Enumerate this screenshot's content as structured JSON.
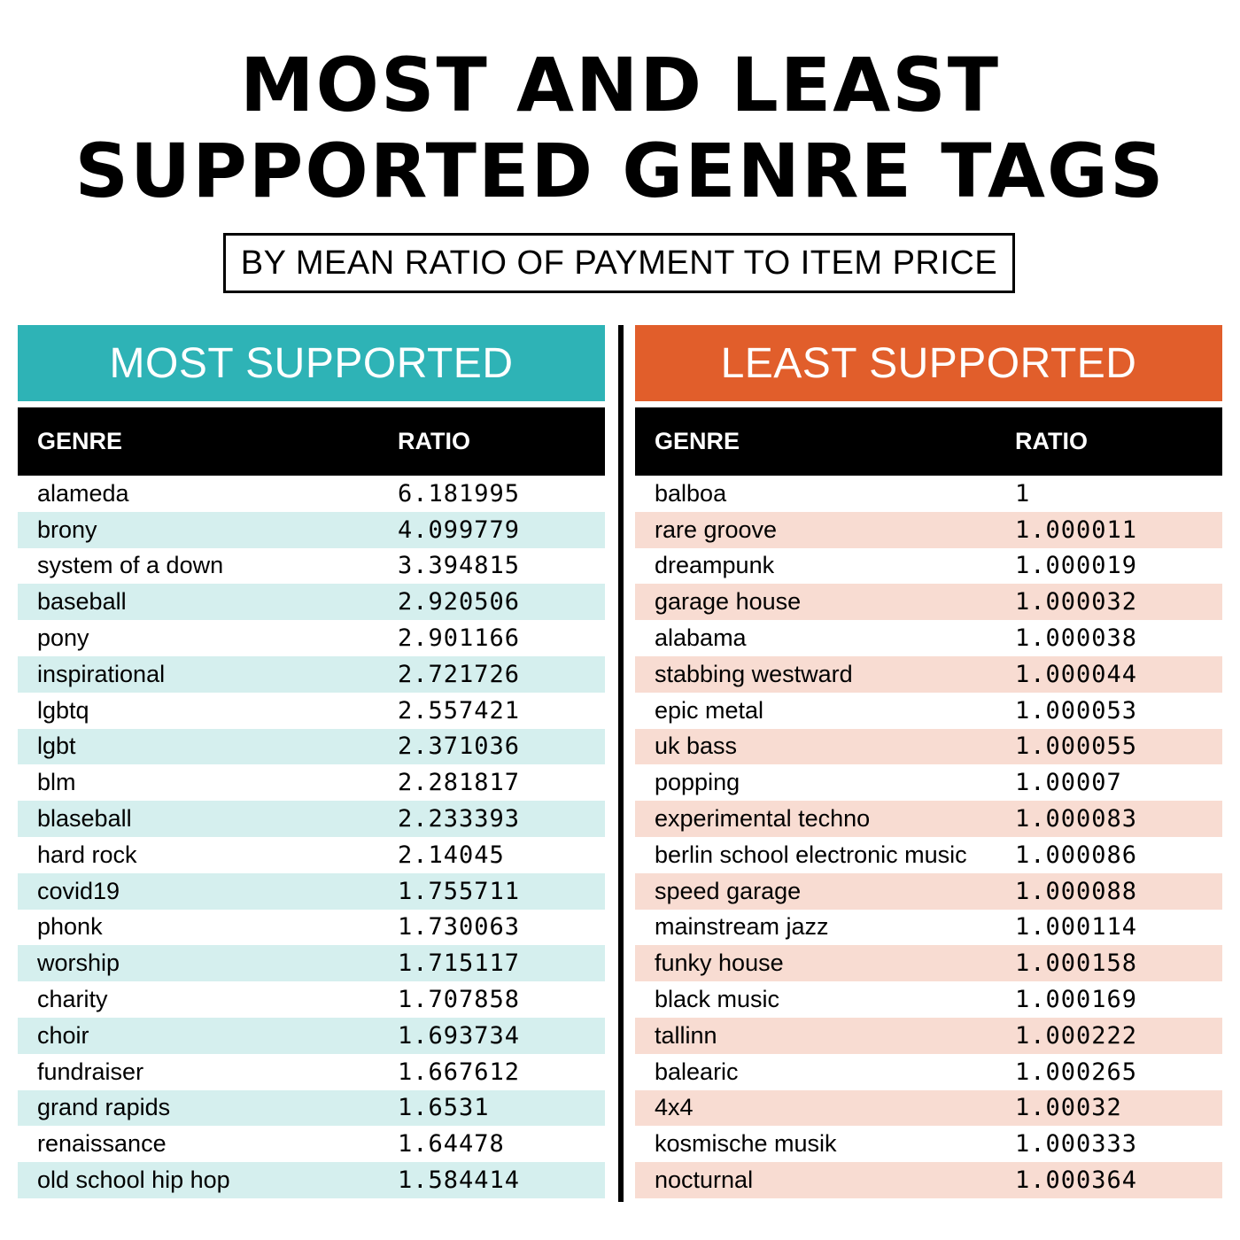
{
  "title": {
    "line1": "MOST AND LEAST",
    "line2": "SUPPORTED GENRE TAGS"
  },
  "subtitle": "BY MEAN RATIO OF PAYMENT TO ITEM PRICE",
  "colors": {
    "most": "#2eb3b6",
    "most_stripe": "#d5efee",
    "least": "#e15e2b",
    "least_stripe": "#f8dcd2"
  },
  "most": {
    "header": "MOST SUPPORTED",
    "col_genre": "GENRE",
    "col_ratio": "RATIO",
    "rows": [
      {
        "genre": "alameda",
        "ratio": "6.181995"
      },
      {
        "genre": "brony",
        "ratio": "4.099779"
      },
      {
        "genre": "system of a down",
        "ratio": "3.394815"
      },
      {
        "genre": "baseball",
        "ratio": "2.920506"
      },
      {
        "genre": "pony",
        "ratio": "2.901166"
      },
      {
        "genre": "inspirational",
        "ratio": "2.721726"
      },
      {
        "genre": "lgbtq",
        "ratio": "2.557421"
      },
      {
        "genre": "lgbt",
        "ratio": "2.371036"
      },
      {
        "genre": "blm",
        "ratio": "2.281817"
      },
      {
        "genre": "blaseball",
        "ratio": "2.233393"
      },
      {
        "genre": "hard rock",
        "ratio": "2.14045"
      },
      {
        "genre": "covid19",
        "ratio": "1.755711"
      },
      {
        "genre": "phonk",
        "ratio": "1.730063"
      },
      {
        "genre": "worship",
        "ratio": "1.715117"
      },
      {
        "genre": "charity",
        "ratio": "1.707858"
      },
      {
        "genre": "choir",
        "ratio": "1.693734"
      },
      {
        "genre": "fundraiser",
        "ratio": "1.667612"
      },
      {
        "genre": "grand rapids",
        "ratio": "1.6531"
      },
      {
        "genre": "renaissance",
        "ratio": "1.64478"
      },
      {
        "genre": "old school hip hop",
        "ratio": "1.584414"
      }
    ]
  },
  "least": {
    "header": "LEAST SUPPORTED",
    "col_genre": "GENRE",
    "col_ratio": "RATIO",
    "rows": [
      {
        "genre": "balboa",
        "ratio": "1"
      },
      {
        "genre": "rare groove",
        "ratio": "1.000011"
      },
      {
        "genre": "dreampunk",
        "ratio": "1.000019"
      },
      {
        "genre": "garage house",
        "ratio": "1.000032"
      },
      {
        "genre": "alabama",
        "ratio": "1.000038"
      },
      {
        "genre": "stabbing westward",
        "ratio": "1.000044"
      },
      {
        "genre": "epic metal",
        "ratio": "1.000053"
      },
      {
        "genre": "uk bass",
        "ratio": "1.000055"
      },
      {
        "genre": "popping",
        "ratio": "1.00007"
      },
      {
        "genre": "experimental techno",
        "ratio": "1.000083"
      },
      {
        "genre": "berlin school electronic music",
        "ratio": "1.000086"
      },
      {
        "genre": "speed garage",
        "ratio": "1.000088"
      },
      {
        "genre": "mainstream jazz",
        "ratio": "1.000114"
      },
      {
        "genre": "funky house",
        "ratio": "1.000158"
      },
      {
        "genre": "black music",
        "ratio": "1.000169"
      },
      {
        "genre": "tallinn",
        "ratio": "1.000222"
      },
      {
        "genre": "balearic",
        "ratio": "1.000265"
      },
      {
        "genre": "4x4",
        "ratio": "1.00032"
      },
      {
        "genre": "kosmische musik",
        "ratio": "1.000333"
      },
      {
        "genre": "nocturnal",
        "ratio": "1.000364"
      }
    ]
  }
}
